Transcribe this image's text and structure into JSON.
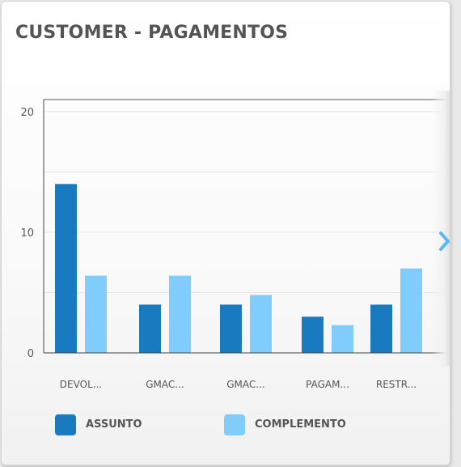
{
  "title": "CUSTOMER - PAGAMENTOS",
  "chart_data": {
    "type": "bar",
    "title": "CUSTOMER - PAGAMENTOS",
    "categories": [
      "DEVOL...",
      "GMAC...",
      "GMAC...",
      "PAGAM...",
      "RESTR..."
    ],
    "series": [
      {
        "name": "ASSUNTO",
        "color": "#1a7abf",
        "values": [
          14,
          4,
          4,
          3,
          4
        ]
      },
      {
        "name": "COMPLEMENTO",
        "color": "#7fccfd",
        "values": [
          6.4,
          6.4,
          4.8,
          2.3,
          7
        ]
      }
    ],
    "yticks": [
      "0",
      "10",
      "20"
    ],
    "ylim": [
      0,
      21
    ],
    "grid": true,
    "legend_position": "bottom-left"
  },
  "icons": {
    "next": "chevron-right-icon"
  }
}
